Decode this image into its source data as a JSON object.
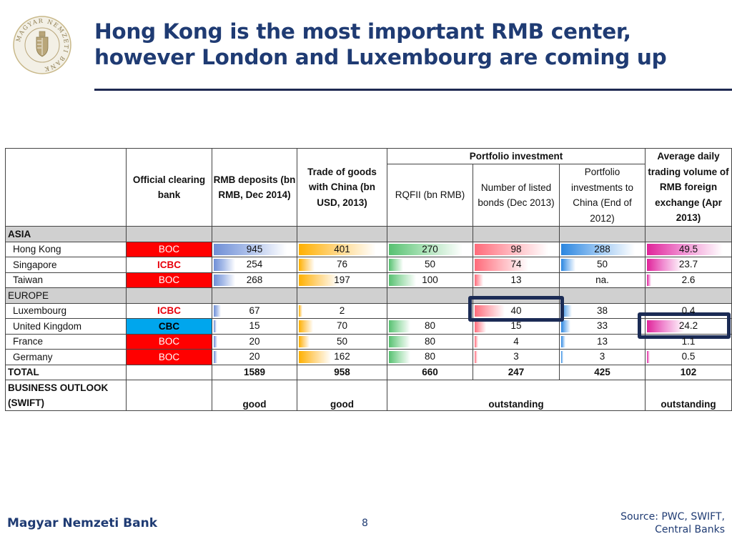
{
  "title": {
    "line1": "Hong Kong is the most important RMB center,",
    "line2": "however London and Luxembourg are coming up"
  },
  "logo": {
    "text": "MAGYAR NEMZETI BANK"
  },
  "table": {
    "headers": {
      "bank": "Official clearing bank",
      "deposits": "RMB deposits (bn RMB, Dec 2014)",
      "trade": "Trade of goods with China (bn USD, 2013)",
      "portfolio_group": "Portfolio investment",
      "rqfii": "RQFII (bn RMB)",
      "bonds": "Number of listed bonds (Dec 2013)",
      "portfolio_inv": "Portfolio investments to China (End of 2012)",
      "fx": "Average daily trading volume of RMB foreign exchange (Apr 2013)"
    },
    "regions": {
      "asia": "ASIA",
      "europe": "EUROPE"
    },
    "rows": [
      {
        "name": "Hong Kong",
        "bank": "BOC",
        "deposits": "945",
        "trade": "401",
        "rqfii": "270",
        "bonds": "98",
        "portfolio": "288",
        "fx": "49.5"
      },
      {
        "name": "Singapore",
        "bank": "ICBC",
        "deposits": "254",
        "trade": "76",
        "rqfii": "50",
        "bonds": "74",
        "portfolio": "50",
        "fx": "23.7"
      },
      {
        "name": "Taiwan",
        "bank": "BOC",
        "deposits": "268",
        "trade": "197",
        "rqfii": "100",
        "bonds": "13",
        "portfolio": "na.",
        "fx": "2.6"
      },
      {
        "name": "Luxembourg",
        "bank": "ICBC",
        "deposits": "67",
        "trade": "2",
        "rqfii": "",
        "bonds": "40",
        "portfolio": "38",
        "fx": "0.4"
      },
      {
        "name": "United Kingdom",
        "bank": "CBC",
        "deposits": "15",
        "trade": "70",
        "rqfii": "80",
        "bonds": "15",
        "portfolio": "33",
        "fx": "24.2"
      },
      {
        "name": "France",
        "bank": "BOC",
        "deposits": "20",
        "trade": "50",
        "rqfii": "80",
        "bonds": "4",
        "portfolio": "13",
        "fx": "1.1"
      },
      {
        "name": "Germany",
        "bank": "BOC",
        "deposits": "20",
        "trade": "162",
        "rqfii": "80",
        "bonds": "3",
        "portfolio": "3",
        "fx": "0.5"
      }
    ],
    "total": {
      "label": "TOTAL",
      "deposits": "1589",
      "trade": "958",
      "rqfii": "660",
      "bonds": "247",
      "portfolio": "425",
      "fx": "102"
    },
    "outlook": {
      "label_line1": "BUSINESS OUTLOOK",
      "label_line2": "(SWIFT)",
      "deposits": "good",
      "trade": "good",
      "portfolio": "outstanding",
      "fx": "outstanding"
    }
  },
  "colors": {
    "title": "#1f3b73",
    "red_bank": "#ff0000",
    "cbc_bank": "#00a6ed",
    "highlight_box": "#1b2b55"
  },
  "footer": {
    "bank": "Magyar Nemzeti Bank",
    "page": "8",
    "source_line1": "Source: PWC, SWIFT,",
    "source_line2": "Central Banks"
  }
}
